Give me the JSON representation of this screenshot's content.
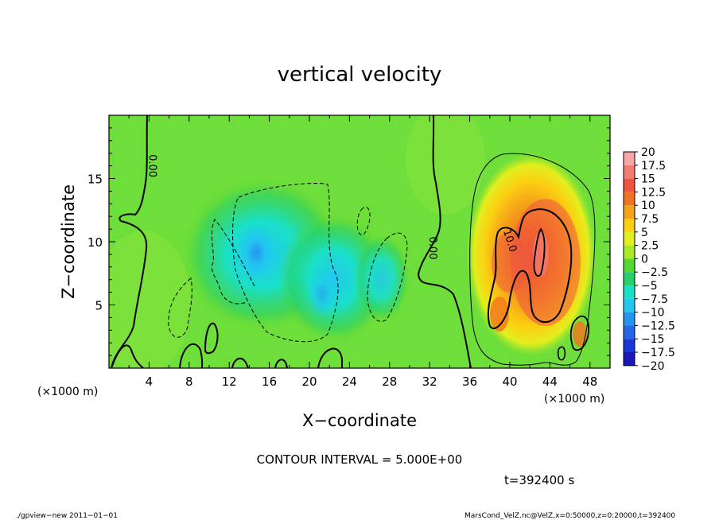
{
  "chart_data": {
    "type": "heatmap",
    "title": "vertical velocity",
    "xlabel": "X−coordinate",
    "ylabel": "Z−coordinate",
    "x_unit_label": "(×1000 m)",
    "x_unit_label_right": "(×1000 m)",
    "xlim": [
      0,
      50
    ],
    "ylim": [
      0,
      20
    ],
    "x_ticks": [
      4,
      8,
      12,
      16,
      20,
      24,
      28,
      32,
      36,
      40,
      44,
      48
    ],
    "y_ticks": [
      5,
      10,
      15
    ],
    "contour_labels": [
      {
        "text": "0.00",
        "x": 4.0,
        "z": 16.0
      },
      {
        "text": "0.00",
        "x": 32.0,
        "z": 9.5
      },
      {
        "text": "10.0",
        "x": 39.7,
        "z": 10.0
      }
    ],
    "colorbar": {
      "levels": [
        "20",
        "17.5",
        "15",
        "12.5",
        "10",
        "7.5",
        "5",
        "2.5",
        "0",
        "−2.5",
        "−5",
        "−7.5",
        "−10",
        "−12.5",
        "−15",
        "−17.5",
        "−20"
      ],
      "colors": [
        "#f7a6a6",
        "#f27b74",
        "#ee5540",
        "#f2741e",
        "#f6a11a",
        "#fbd012",
        "#e3ee1e",
        "#a8ea28",
        "#55d830",
        "#26d06a",
        "#1ae0c8",
        "#22c8f0",
        "#2694ee",
        "#2466e6",
        "#1a38d8",
        "#1818b8",
        "#5a1ab0"
      ]
    },
    "contour_interval_text": "CONTOUR INTERVAL = 5.000E+00",
    "time_text": "t=392400 s"
  },
  "footer": {
    "left": "./gpview−new   2011−01−01",
    "right": "MarsCond_VelZ.nc@VelZ,x=0:50000,z=0:20000,t=392400"
  }
}
